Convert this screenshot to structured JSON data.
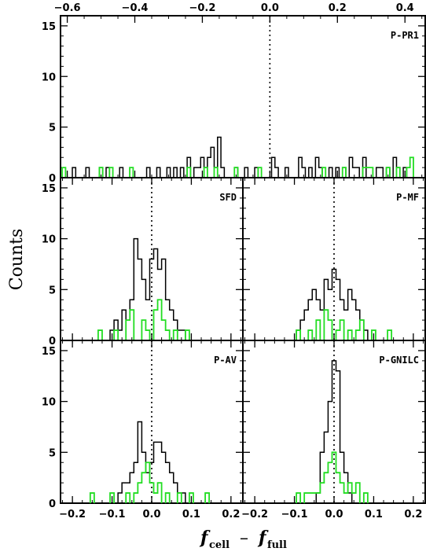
{
  "ylabel": "Counts",
  "xlabel": {
    "main": "f",
    "sub1": "cell",
    "minus": "–",
    "sub2": "full"
  },
  "colors": {
    "hist_all": "#000000",
    "hist_subset": "#22dd22",
    "zero_line": "#000000"
  },
  "chart_data": [
    {
      "type": "histogram",
      "label": "P-PR1",
      "xlim": [
        -0.62,
        0.46
      ],
      "ylim": [
        0,
        16
      ],
      "xticks": [
        -0.6,
        -0.4,
        -0.2,
        0.0,
        0.2,
        0.4
      ],
      "xtick_labels": [
        "−0.6",
        "−0.4",
        "−0.2",
        "0.0",
        "0.2",
        "0.4"
      ],
      "xlabels_position": "top",
      "yticks": [
        0,
        5,
        10,
        15
      ],
      "bin_width": 0.01,
      "zero_line": 0.0,
      "black_counts": {
        "-0.58": 1,
        "-0.54": 1,
        "-0.50": 1,
        "-0.48": 1,
        "-0.44": 1,
        "-0.36": 1,
        "-0.33": 1,
        "-0.30": 1,
        "-0.28": 1,
        "-0.26": 1,
        "-0.24": 2,
        "-0.22": 1,
        "-0.21": 1,
        "-0.20": 2,
        "-0.19": 1,
        "-0.18": 2,
        "-0.17": 3,
        "-0.16": 1,
        "-0.15": 4,
        "-0.14": 1,
        "-0.10": 1,
        "-0.07": 1,
        "-0.04": 1,
        "0.01": 2,
        "0.02": 1,
        "0.05": 1,
        "0.09": 2,
        "0.10": 1,
        "0.12": 1,
        "0.14": 2,
        "0.15": 1,
        "0.18": 1,
        "0.20": 1,
        "0.22": 1,
        "0.24": 2,
        "0.25": 1,
        "0.26": 1,
        "0.28": 2,
        "0.32": 1,
        "0.33": 1,
        "0.35": 1,
        "0.37": 2,
        "0.38": 1,
        "0.40": 1
      },
      "green_counts": {
        "-0.61": 1,
        "-0.50": 1,
        "-0.47": 1,
        "-0.41": 1,
        "-0.24": 1,
        "-0.19": 1,
        "-0.16": 1,
        "-0.10": 1,
        "-0.03": 1,
        "0.16": 1,
        "0.22": 1,
        "0.28": 1,
        "0.29": 1,
        "0.30": 1,
        "0.35": 1,
        "0.38": 1,
        "0.41": 1,
        "0.42": 2
      }
    },
    {
      "type": "histogram",
      "label": "SFD",
      "xlim": [
        -0.23,
        0.23
      ],
      "ylim": [
        0,
        16
      ],
      "xticks": [
        -0.2,
        -0.1,
        0.0,
        0.1,
        0.2
      ],
      "xtick_labels": [],
      "yticks": [
        0,
        5,
        10,
        15
      ],
      "bin_width": 0.01,
      "zero_line": 0.0,
      "black_counts": {
        "-0.10": 1,
        "-0.09": 2,
        "-0.08": 1,
        "-0.07": 3,
        "-0.06": 2,
        "-0.05": 4,
        "-0.04": 10,
        "-0.03": 8,
        "-0.02": 6,
        "-0.01": 4,
        "0.00": 8,
        "0.01": 9,
        "0.02": 7,
        "0.03": 8,
        "0.04": 4,
        "0.05": 3,
        "0.06": 2,
        "0.07": 1,
        "0.08": 1
      },
      "green_counts": {
        "-0.13": 1,
        "-0.09": 1,
        "-0.06": 2,
        "-0.05": 3,
        "-0.02": 2,
        "-0.01": 1,
        "0.01": 3,
        "0.02": 4,
        "0.03": 2,
        "0.04": 1,
        "0.06": 1,
        "0.09": 1
      }
    },
    {
      "type": "histogram",
      "label": "P-MF",
      "xlim": [
        -0.23,
        0.23
      ],
      "ylim": [
        0,
        16
      ],
      "xticks": [
        -0.2,
        -0.1,
        0.0,
        0.1,
        0.2
      ],
      "xtick_labels": [],
      "yticks": [
        0,
        5,
        10,
        15
      ],
      "bin_width": 0.01,
      "zero_line": 0.0,
      "black_counts": {
        "-0.09": 1,
        "-0.08": 2,
        "-0.07": 3,
        "-0.06": 4,
        "-0.05": 5,
        "-0.04": 4,
        "-0.03": 3,
        "-0.02": 6,
        "-0.01": 5,
        "0.00": 7,
        "0.01": 6,
        "0.02": 4,
        "0.03": 3,
        "0.04": 5,
        "0.05": 4,
        "0.06": 3,
        "0.07": 2,
        "0.08": 1
      },
      "green_counts": {
        "-0.09": 1,
        "-0.06": 1,
        "-0.04": 2,
        "-0.02": 3,
        "-0.01": 2,
        "0.01": 1,
        "0.02": 2,
        "0.04": 1,
        "0.06": 1,
        "0.07": 2,
        "0.10": 1,
        "0.14": 1
      }
    },
    {
      "type": "histogram",
      "label": "P-AV",
      "xlim": [
        -0.23,
        0.23
      ],
      "ylim": [
        0,
        16
      ],
      "xticks": [
        -0.2,
        -0.1,
        0.0,
        0.1,
        0.2
      ],
      "xtick_labels": [
        "−0.2",
        "−0.1",
        "0.0",
        "0.1",
        "0.2"
      ],
      "yticks": [
        0,
        5,
        10,
        15
      ],
      "bin_width": 0.01,
      "zero_line": 0.0,
      "black_counts": {
        "-0.08": 1,
        "-0.07": 2,
        "-0.06": 2,
        "-0.05": 3,
        "-0.04": 4,
        "-0.03": 8,
        "-0.02": 5,
        "-0.01": 3,
        "0.00": 4,
        "0.01": 6,
        "0.02": 6,
        "0.03": 5,
        "0.04": 4,
        "0.05": 3,
        "0.06": 2,
        "0.07": 1,
        "0.08": 1
      },
      "green_counts": {
        "-0.15": 1,
        "-0.10": 1,
        "-0.06": 1,
        "-0.04": 1,
        "-0.03": 2,
        "-0.02": 3,
        "-0.01": 4,
        "0.00": 2,
        "0.01": 1,
        "0.02": 2,
        "0.04": 1,
        "0.07": 1,
        "0.10": 1,
        "0.14": 1
      }
    },
    {
      "type": "histogram",
      "label": "P-GNILC",
      "xlim": [
        -0.23,
        0.23
      ],
      "ylim": [
        0,
        16
      ],
      "xticks": [
        -0.2,
        -0.1,
        0.0,
        0.1,
        0.2
      ],
      "xtick_labels": [
        "−0.2",
        "−0.1",
        "0.0",
        "0.1",
        "0.2"
      ],
      "yticks": [
        0,
        5,
        10,
        15
      ],
      "bin_width": 0.01,
      "zero_line": 0.0,
      "black_counts": {
        "-0.04": 1,
        "-0.03": 5,
        "-0.02": 7,
        "-0.01": 10,
        "0.00": 14,
        "0.01": 13,
        "0.02": 5,
        "0.03": 3,
        "0.04": 1
      },
      "green_counts": {
        "-0.09": 1,
        "-0.07": 1,
        "-0.06": 1,
        "-0.05": 1,
        "-0.04": 1,
        "-0.03": 2,
        "-0.02": 3,
        "-0.01": 4,
        "0.00": 5,
        "0.01": 3,
        "0.02": 2,
        "0.03": 1,
        "0.04": 2,
        "0.05": 1,
        "0.06": 2,
        "0.08": 1
      }
    }
  ]
}
